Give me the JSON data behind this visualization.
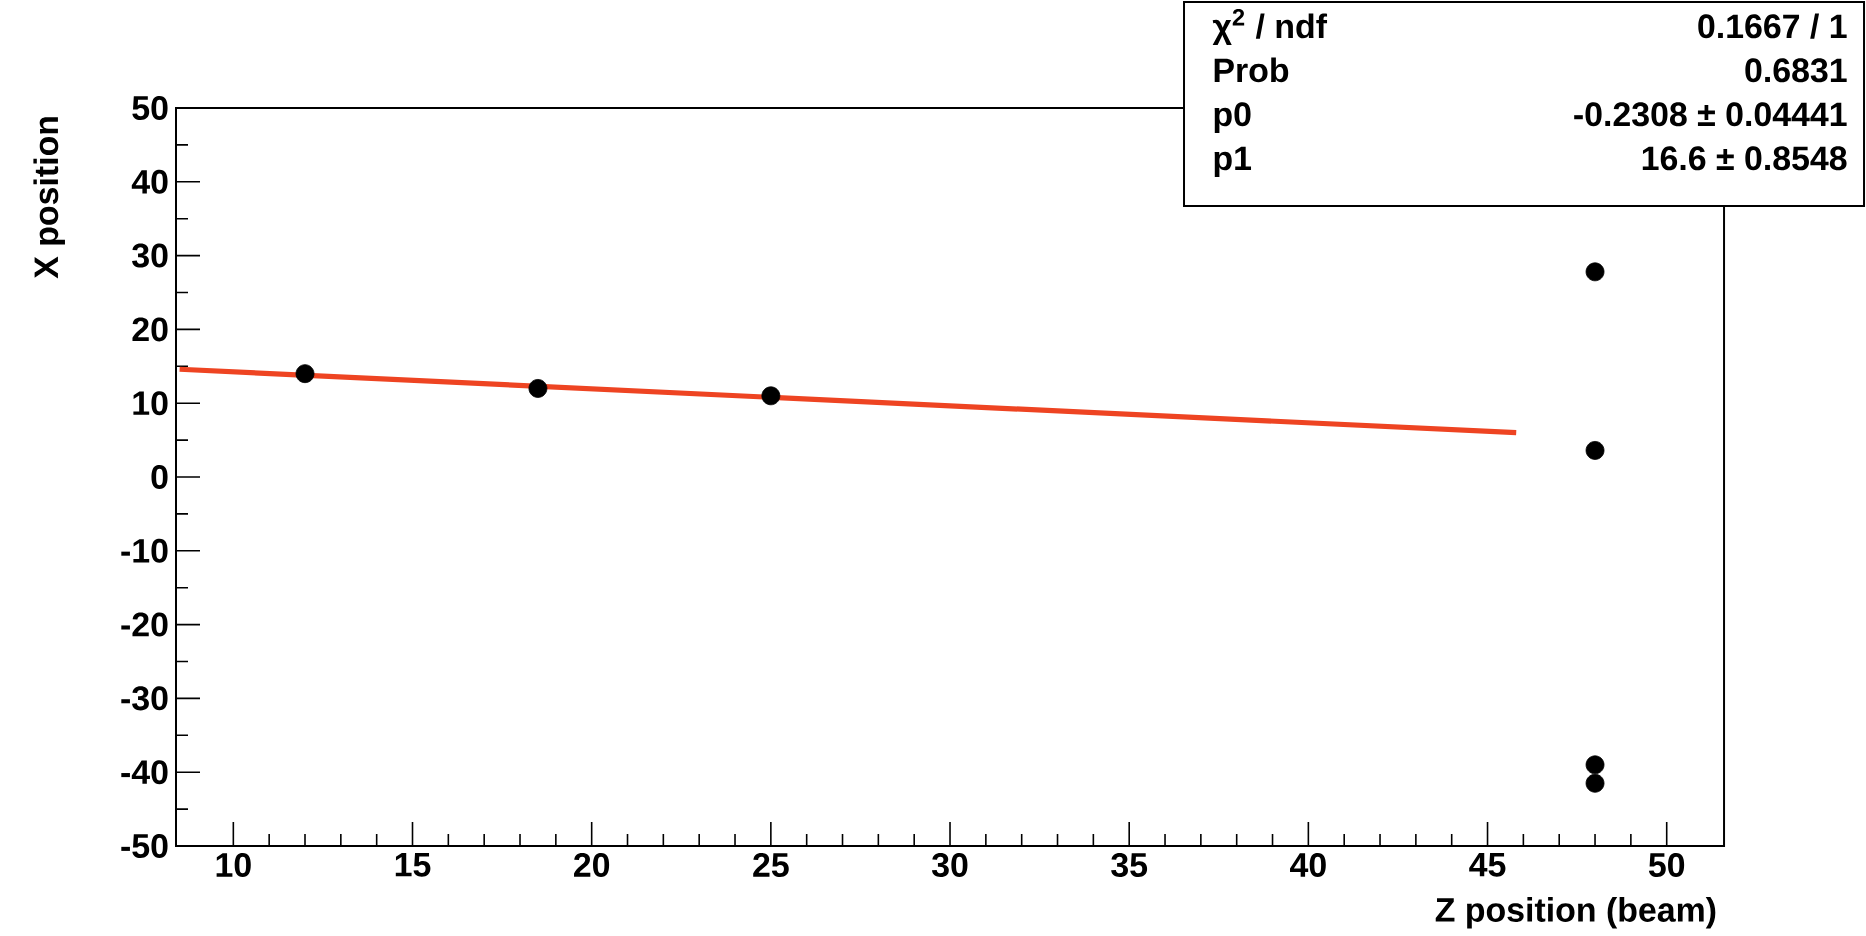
{
  "chart_data": {
    "type": "scatter",
    "xlabel": "Z position (beam)",
    "ylabel": "X position",
    "xlim": [
      8.4,
      51.6
    ],
    "ylim": [
      -50,
      50
    ],
    "xticks": [
      10,
      15,
      20,
      25,
      30,
      35,
      40,
      45,
      50
    ],
    "yticks": [
      -50,
      -40,
      -30,
      -20,
      -10,
      0,
      10,
      20,
      30,
      40,
      50
    ],
    "grid": false,
    "series": [
      {
        "color": "#000000",
        "marker": "circle",
        "x": [
          12,
          18.5,
          25,
          48,
          48,
          48,
          48
        ],
        "values": [
          14,
          12,
          11,
          27.8,
          3.6,
          -39,
          -41.5
        ]
      },
      {
        "type": "line",
        "color": "#ee4422",
        "marker": "none",
        "line_style": "solid",
        "x": [
          8.5,
          45.8
        ],
        "values": [
          14.6,
          6
        ]
      }
    ],
    "annotations": [
      "χ$^{2}$ / ndf",
      "0.1667 / 1",
      "Prob",
      "0.6831",
      "p0",
      "-0.2308 ± 0.04441",
      "p1",
      "16.6 ± 0.8548"
    ]
  }
}
